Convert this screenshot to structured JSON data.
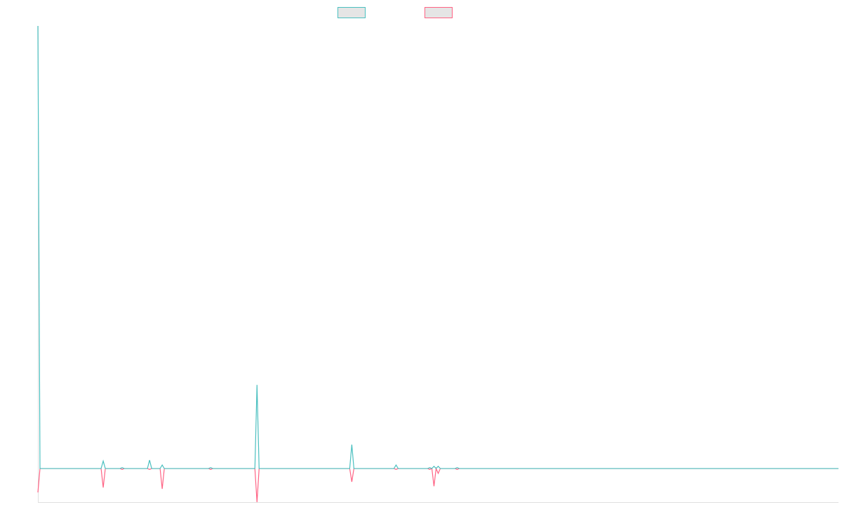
{
  "chart_data": {
    "type": "line",
    "title": "",
    "xlabel": "",
    "ylabel": "",
    "grid": false,
    "legend_placement": "top",
    "x_count": 381,
    "ylim": [
      -7.6,
      100
    ],
    "series": [
      {
        "color": "#4bc0c0",
        "default_value": 0,
        "points": [
          [
            0,
            100
          ],
          [
            31,
            1.7
          ],
          [
            40,
            0.2
          ],
          [
            53,
            1.9
          ],
          [
            59,
            0.8
          ],
          [
            82,
            0.2
          ],
          [
            104,
            18.9
          ],
          [
            149,
            5.4
          ],
          [
            170,
            0.8
          ],
          [
            186,
            0.2
          ],
          [
            188,
            0.5
          ],
          [
            190,
            0.5
          ],
          [
            199,
            0.2
          ]
        ]
      },
      {
        "color": "#ff6384",
        "default_value": 0,
        "points": [
          [
            0,
            -5.4
          ],
          [
            31,
            -4.3
          ],
          [
            40,
            -0.2
          ],
          [
            53,
            -0.2
          ],
          [
            59,
            -4.6
          ],
          [
            82,
            -0.2
          ],
          [
            104,
            -7.6
          ],
          [
            149,
            -3.0
          ],
          [
            170,
            -0.2
          ],
          [
            186,
            -0.2
          ],
          [
            188,
            -4.0
          ],
          [
            190,
            -1.1
          ],
          [
            199,
            -0.2
          ]
        ]
      }
    ]
  },
  "legend": {
    "fill": "#e5e5e5"
  }
}
